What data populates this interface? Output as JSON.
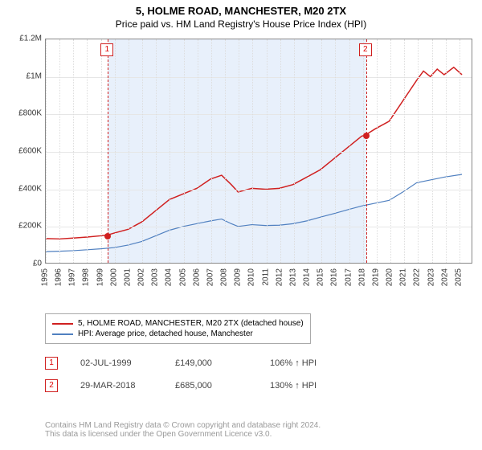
{
  "title": "5, HOLME ROAD, MANCHESTER, M20 2TX",
  "subtitle": "Price paid vs. HM Land Registry's House Price Index (HPI)",
  "title_fontsize": 13,
  "subtitle_fontsize": 12,
  "chart": {
    "type": "line",
    "background_color": "#ffffff",
    "border_color": "#888888",
    "grid_color": "#e6e6e6",
    "xgrid_color": "#dddddd",
    "shade_color": "#e8f0fb",
    "marker_dash_color": "#d02020",
    "marker_box_border": "#d02020",
    "point_color": "#d02020",
    "x_years": [
      1995,
      1996,
      1997,
      1998,
      1999,
      2000,
      2001,
      2002,
      2003,
      2004,
      2005,
      2006,
      2007,
      2008,
      2009,
      2010,
      2011,
      2012,
      2013,
      2014,
      2015,
      2016,
      2017,
      2018,
      2019,
      2020,
      2021,
      2022,
      2023,
      2024,
      2025
    ],
    "xlim": [
      1995,
      2026
    ],
    "ylim": [
      0,
      1200000
    ],
    "ytick_step": 200000,
    "ytick_labels": [
      "£0",
      "£200K",
      "£400K",
      "£600K",
      "£800K",
      "£1M",
      "£1.2M"
    ],
    "x_tick_fontsize": 10,
    "y_tick_fontsize": 10,
    "markers": [
      {
        "label": "1",
        "x": 1999.5
      },
      {
        "label": "2",
        "x": 2018.24
      }
    ],
    "sale_points": [
      {
        "x": 1999.5,
        "y": 149000
      },
      {
        "x": 2018.24,
        "y": 685000
      }
    ],
    "series": [
      {
        "name": "price_paid",
        "label": "5, HOLME ROAD, MANCHESTER, M20 2TX (detached house)",
        "color": "#d02020",
        "line_width": 1.5,
        "data": [
          [
            1995,
            130000
          ],
          [
            1996,
            128000
          ],
          [
            1997,
            133000
          ],
          [
            1998,
            138000
          ],
          [
            1999,
            145000
          ],
          [
            1999.5,
            149000
          ],
          [
            2000,
            160000
          ],
          [
            2001,
            180000
          ],
          [
            2002,
            220000
          ],
          [
            2003,
            280000
          ],
          [
            2004,
            340000
          ],
          [
            2005,
            370000
          ],
          [
            2006,
            400000
          ],
          [
            2007,
            450000
          ],
          [
            2007.8,
            470000
          ],
          [
            2008.5,
            420000
          ],
          [
            2009,
            380000
          ],
          [
            2010,
            400000
          ],
          [
            2011,
            395000
          ],
          [
            2012,
            400000
          ],
          [
            2013,
            420000
          ],
          [
            2014,
            460000
          ],
          [
            2015,
            500000
          ],
          [
            2016,
            560000
          ],
          [
            2017,
            620000
          ],
          [
            2018,
            680000
          ],
          [
            2018.24,
            685000
          ],
          [
            2019,
            720000
          ],
          [
            2020,
            760000
          ],
          [
            2021,
            870000
          ],
          [
            2022,
            980000
          ],
          [
            2022.5,
            1030000
          ],
          [
            2023,
            1000000
          ],
          [
            2023.5,
            1040000
          ],
          [
            2024,
            1010000
          ],
          [
            2024.7,
            1050000
          ],
          [
            2025.3,
            1010000
          ]
        ]
      },
      {
        "name": "hpi",
        "label": "HPI: Average price, detached house, Manchester",
        "color": "#5080c0",
        "line_width": 1.2,
        "data": [
          [
            1995,
            60000
          ],
          [
            1996,
            62000
          ],
          [
            1997,
            65000
          ],
          [
            1998,
            70000
          ],
          [
            1999,
            75000
          ],
          [
            2000,
            82000
          ],
          [
            2001,
            95000
          ],
          [
            2002,
            115000
          ],
          [
            2003,
            145000
          ],
          [
            2004,
            175000
          ],
          [
            2005,
            195000
          ],
          [
            2006,
            210000
          ],
          [
            2007,
            225000
          ],
          [
            2007.8,
            235000
          ],
          [
            2008.5,
            210000
          ],
          [
            2009,
            195000
          ],
          [
            2010,
            205000
          ],
          [
            2011,
            200000
          ],
          [
            2012,
            202000
          ],
          [
            2013,
            210000
          ],
          [
            2014,
            225000
          ],
          [
            2015,
            245000
          ],
          [
            2016,
            265000
          ],
          [
            2017,
            285000
          ],
          [
            2018,
            305000
          ],
          [
            2019,
            320000
          ],
          [
            2020,
            335000
          ],
          [
            2021,
            380000
          ],
          [
            2022,
            430000
          ],
          [
            2023,
            445000
          ],
          [
            2024,
            460000
          ],
          [
            2025.3,
            475000
          ]
        ]
      }
    ]
  },
  "legend": {
    "fontsize": 10,
    "items": [
      {
        "color": "#d02020",
        "label": "5, HOLME ROAD, MANCHESTER, M20 2TX (detached house)"
      },
      {
        "color": "#5080c0",
        "label": "HPI: Average price, detached house, Manchester"
      }
    ]
  },
  "sales": [
    {
      "marker": "1",
      "date": "02-JUL-1999",
      "price": "£149,000",
      "pct": "106% ↑ HPI"
    },
    {
      "marker": "2",
      "date": "29-MAR-2018",
      "price": "£685,000",
      "pct": "130% ↑ HPI"
    }
  ],
  "sales_fontsize": 11,
  "attribution": {
    "line1": "Contains HM Land Registry data © Crown copyright and database right 2024.",
    "line2": "This data is licensed under the Open Government Licence v3.0.",
    "fontsize": 10
  }
}
